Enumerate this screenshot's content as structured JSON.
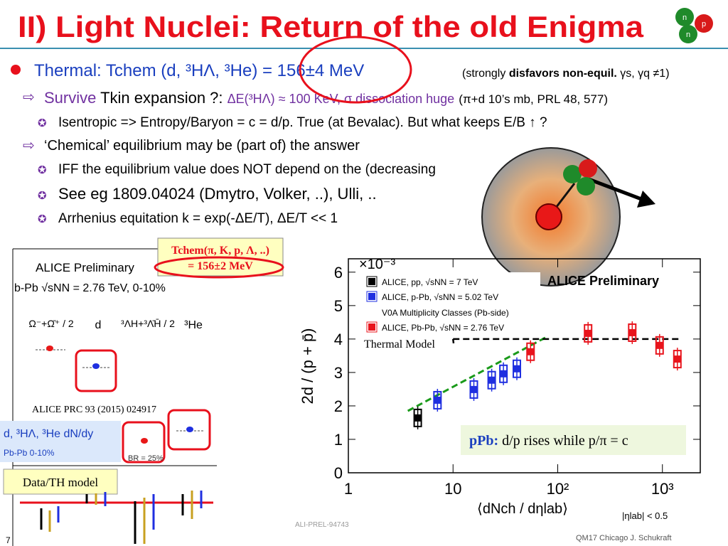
{
  "header": {
    "title": "II) Light Nuclei: Return of the old Enigma"
  },
  "bullets": [
    {
      "text": "Thermal: Tchem (d, ³HΛ, ³He) = 156±4 MeV",
      "note": [
        "(strongly",
        "disfavors non-equil.",
        "γs, γq ≠1)"
      ]
    },
    {
      "parts": [
        "Survive",
        "Tkin expansion ?:",
        "ΔE(³HΛ) ≈ 100 KeV, σ dissociation huge",
        "(π+d 10’s mb, PRL 48, 577)"
      ]
    },
    {
      "text": "Isentropic => Entropy/Baryon = c = d/p. True (at Bevalac). But what keeps E/B ↑ ?"
    },
    {
      "text": "‘Chemical’ equilibrium may be (part of)  the answer"
    },
    {
      "text": "IFF the equilibrium value does NOT depend on the (decreasing"
    },
    {
      "text": "See eg 1809.04024 (Dmytro, Volker, ..), Ulli, .."
    },
    {
      "text": "Arrhenius equitation  k = exp(-ΔE/T), ΔE/T << 1"
    }
  ],
  "tchem_box": [
    "Tchem(π, K, p, Λ, ..)",
    "= 156±2 MeV"
  ],
  "left_panel": {
    "title": "ALICE Preliminary",
    "system": "b-Pb √sNN = 2.76 TeV, 0-10%",
    "species": [
      "Ω⁻+Ω̄⁺ / 2",
      "d",
      "³ΛH+³Λ̄H̄ / 2",
      "³He"
    ],
    "reference": "ALICE PRC 93 (2015) 024917",
    "legend_title": "d, ³HΛ, ³He dN/dy",
    "legend_sub": "Pb-Pb 0-10%",
    "br": "BR = 25%",
    "ratio_label": "Data/TH model"
  },
  "chart_data": {
    "type": "scatter",
    "title": "ALICE Preliminary",
    "y_multiplier": "×10⁻³",
    "ylabel": "2d / (p + p̄)",
    "xlabel": "⟨dNch / dηlab⟩",
    "xlabel_cut": "|ηlab| < 0.5",
    "xlog": true,
    "xlim": [
      1,
      2300
    ],
    "ylim": [
      0,
      6.4
    ],
    "xticks": [
      1,
      10,
      {
        "value": 100,
        "label": "10²"
      },
      {
        "value": 1000,
        "label": "10³"
      }
    ],
    "yticks": [
      0,
      1,
      2,
      3,
      4,
      5,
      6
    ],
    "legend_note": "V0A Multiplicity Classes (Pb-side)",
    "series": [
      {
        "name": "ALICE, pp, √sNN = 7 TeV",
        "color": "#000000",
        "x": [
          4.6
        ],
        "values": [
          1.64
        ]
      },
      {
        "name": "ALICE, p-Pb, √sNN = 5.02 TeV",
        "color": "#1f2fe0",
        "x": [
          7.1,
          15.8,
          23.4,
          30.3,
          40.7
        ],
        "values": [
          2.17,
          2.49,
          2.77,
          2.96,
          3.11
        ]
      },
      {
        "name": "ALICE, Pb-Pb, √sNN = 2.76 TeV",
        "color": "#e8141c",
        "x": [
          55,
          195,
          515,
          940,
          1390
        ],
        "values": [
          3.62,
          4.17,
          4.19,
          3.81,
          3.4
        ]
      }
    ],
    "thermal_model": {
      "name": "Thermal Model",
      "color": "#000000",
      "x": [
        10,
        1500
      ],
      "values": [
        4.0,
        4.0
      ]
    },
    "trend": {
      "color": "#1a9a1a",
      "x": [
        3.7,
        76
      ],
      "values": [
        1.85,
        4.04
      ]
    },
    "annotation": [
      "pPb:",
      "d/p rises while p/π = c"
    ],
    "source": "ALI-PREL-94743"
  },
  "footer": {
    "credit": "QM17 Chicago J. Schukraft",
    "page": "7"
  }
}
